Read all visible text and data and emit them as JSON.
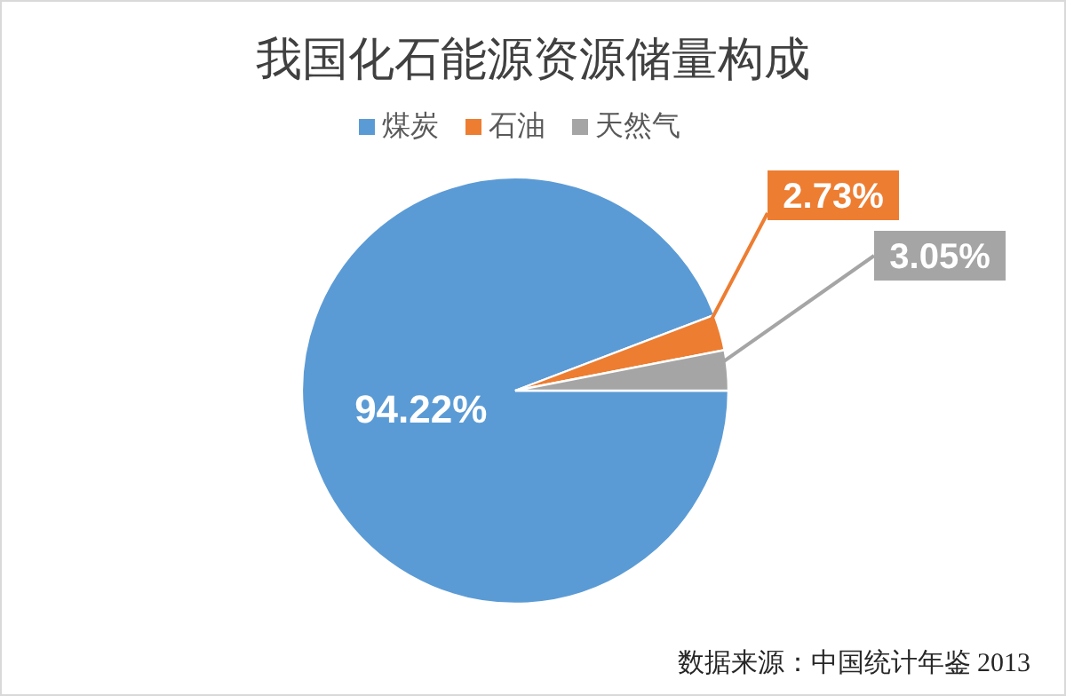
{
  "chart_data": {
    "type": "pie",
    "title": "我国化石能源资源储量构成",
    "categories": [
      "煤炭",
      "石油",
      "天然气"
    ],
    "values": [
      94.22,
      2.73,
      3.05
    ],
    "colors": [
      "#5b9bd5",
      "#ed7d31",
      "#a5a5a5"
    ],
    "value_labels": [
      "94.22%",
      "2.73%",
      "3.05%"
    ],
    "legend": "top",
    "annotations": [
      "数据来源：中国统计年鉴 2013"
    ]
  }
}
